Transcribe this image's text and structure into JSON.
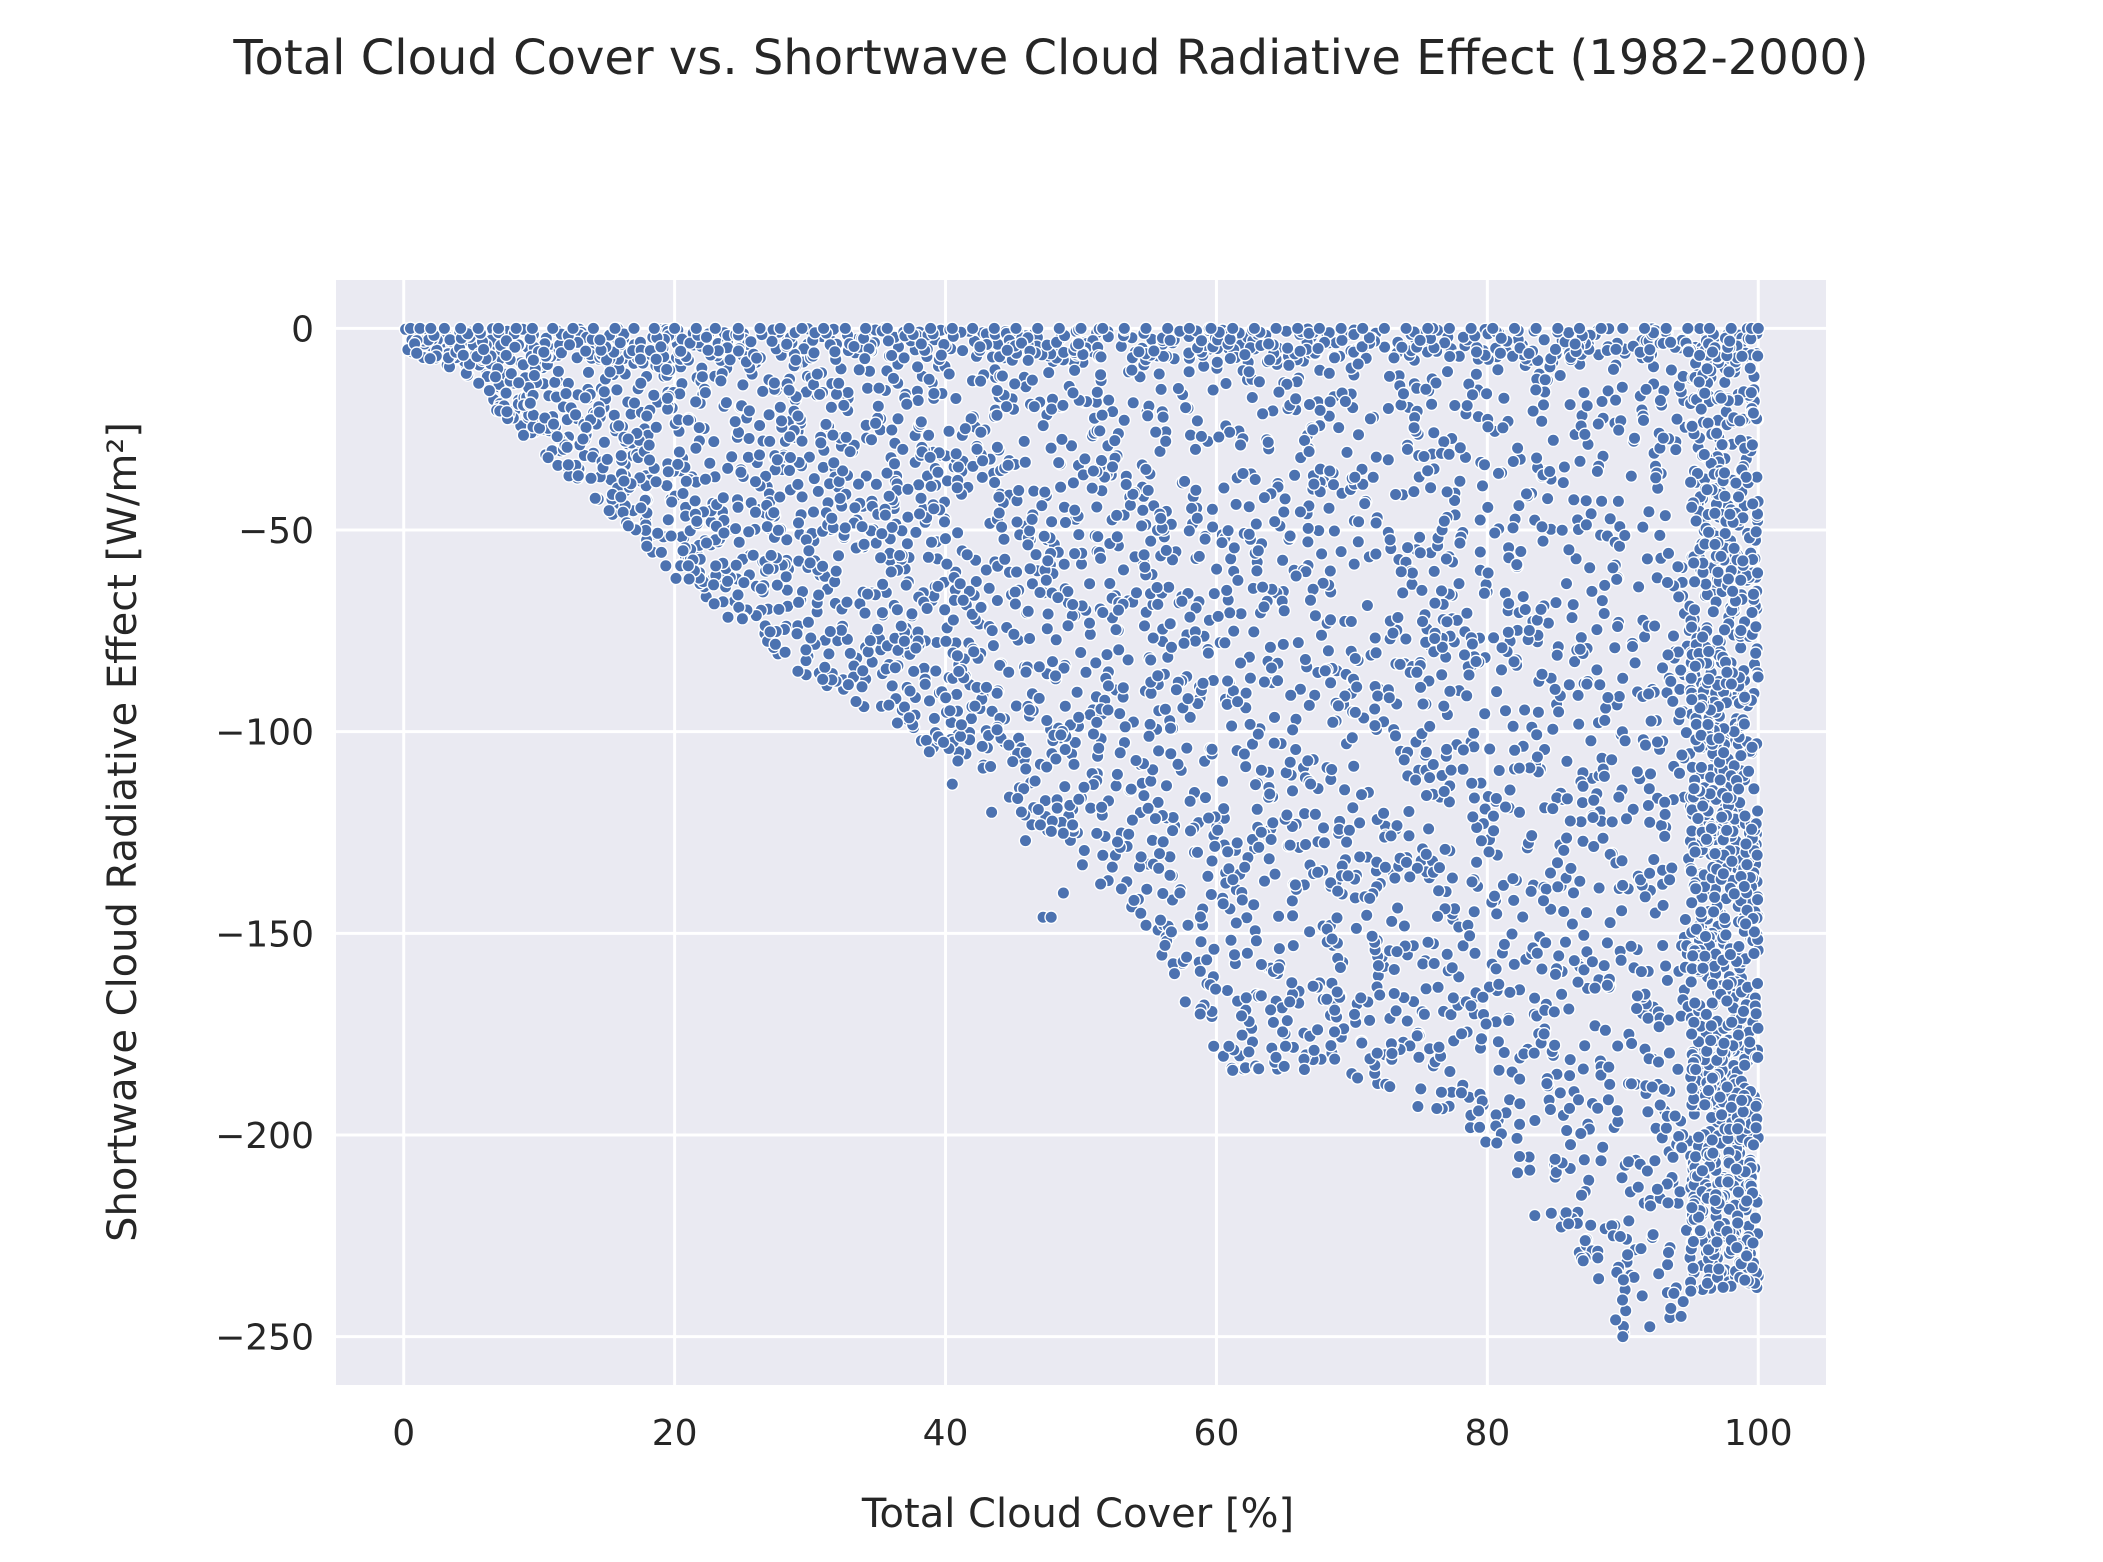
{
  "chart_data": {
    "type": "scatter",
    "title": "Total Cloud Cover vs. Shortwave Cloud Radiative Effect (1982-2000)",
    "xlabel": "Total Cloud Cover [%]",
    "ylabel": "Shortwave Cloud Radiative Effect [W/m²]",
    "xlim": [
      -5,
      105
    ],
    "ylim": [
      -262,
      12
    ],
    "xticks": [
      0,
      20,
      40,
      60,
      80,
      100
    ],
    "yticks": [
      0,
      -50,
      -100,
      -150,
      -200,
      -250
    ],
    "xtick_labels": [
      "0",
      "20",
      "40",
      "60",
      "80",
      "100"
    ],
    "ytick_labels": [
      "0",
      "−50",
      "−100",
      "−150",
      "−200",
      "−250"
    ],
    "grid": true,
    "legend": false,
    "colors": {
      "marker": "#4c72b0",
      "marker_edge": "#ffffff",
      "plot_bg": "#eaeaf2",
      "grid": "#ffffff"
    },
    "envelope": {
      "description_points": [
        [
          0,
          0
        ],
        [
          10,
          -30
        ],
        [
          20,
          -62
        ],
        [
          30,
          -87
        ],
        [
          40,
          -106
        ],
        [
          50,
          -133
        ],
        [
          55,
          -150
        ],
        [
          60,
          -180
        ],
        [
          61,
          -184
        ],
        [
          65,
          -184
        ],
        [
          72,
          -188
        ],
        [
          80,
          -202
        ],
        [
          85,
          -221
        ],
        [
          90,
          -250
        ],
        [
          94,
          -246
        ],
        [
          96,
          -238
        ],
        [
          100,
          -238
        ]
      ]
    },
    "outliers": [
      [
        90,
        -250
      ],
      [
        94.3,
        -245
      ],
      [
        83.5,
        -220
      ],
      [
        86,
        -222
      ],
      [
        85,
        -206
      ],
      [
        80.7,
        -202
      ],
      [
        72.8,
        -188
      ],
      [
        61.2,
        -184
      ],
      [
        65,
        -183
      ],
      [
        59.8,
        -178
      ],
      [
        65.1,
        -178
      ],
      [
        57.7,
        -167
      ],
      [
        62.2,
        -166
      ],
      [
        58.8,
        -170
      ],
      [
        64,
        -169
      ],
      [
        47.2,
        -146
      ],
      [
        47.8,
        -146
      ],
      [
        48.7,
        -140
      ],
      [
        50.1,
        -133
      ],
      [
        45.9,
        -127
      ],
      [
        54.8,
        -148
      ],
      [
        56.2,
        -153
      ],
      [
        56.9,
        -160
      ],
      [
        43.4,
        -120
      ],
      [
        40.5,
        -113
      ],
      [
        38.8,
        -105
      ],
      [
        29.1,
        -85
      ],
      [
        25,
        -72
      ],
      [
        20.1,
        -62
      ],
      [
        57.3,
        -140
      ]
    ],
    "zero_row_points": [
      0.5,
      1.2,
      2,
      3,
      4.2,
      5.5,
      7,
      8.3,
      9.5,
      11,
      12.5,
      14,
      15.6,
      17,
      18.5,
      20,
      21.6,
      23,
      24.7,
      26.3,
      27.8,
      29.4,
      31,
      32.6,
      34.1,
      35.7,
      37.3,
      38.9,
      40.5,
      42,
      43.6,
      45.2,
      46.8,
      48.4,
      50,
      51.6,
      53.2,
      54.8,
      56.4,
      58,
      59.6,
      61.2,
      62.8,
      64.4,
      66,
      67.6,
      69.2,
      70.8,
      72.4,
      74,
      75.6,
      77.2,
      78.8,
      80.4,
      82,
      83.6,
      85.2,
      86.8,
      88.4,
      90,
      91.6,
      93.2,
      94.8,
      96.4,
      98,
      99.5,
      100
    ]
  }
}
